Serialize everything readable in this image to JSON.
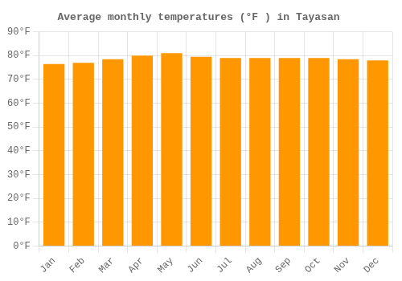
{
  "chart_data": {
    "type": "bar",
    "title": "Average monthly temperatures (°F ) in Tayasan",
    "categories": [
      "Jan",
      "Feb",
      "Mar",
      "Apr",
      "May",
      "Jun",
      "Jul",
      "Aug",
      "Sep",
      "Oct",
      "Nov",
      "Dec"
    ],
    "values": [
      76.5,
      77.0,
      78.5,
      80.0,
      81.0,
      79.5,
      79.0,
      79.0,
      79.0,
      79.0,
      78.5,
      78.0
    ],
    "color": "#FF9800",
    "ylim": [
      0,
      90
    ],
    "yticks": [
      {
        "value": 0,
        "label": "0°F"
      },
      {
        "value": 10,
        "label": "10°F"
      },
      {
        "value": 20,
        "label": "20°F"
      },
      {
        "value": 30,
        "label": "30°F"
      },
      {
        "value": 40,
        "label": "40°F"
      },
      {
        "value": 50,
        "label": "50°F"
      },
      {
        "value": 60,
        "label": "60°F"
      },
      {
        "value": 70,
        "label": "70°F"
      },
      {
        "value": 80,
        "label": "80°F"
      },
      {
        "value": 90,
        "label": "90°F"
      }
    ],
    "grid": true
  }
}
